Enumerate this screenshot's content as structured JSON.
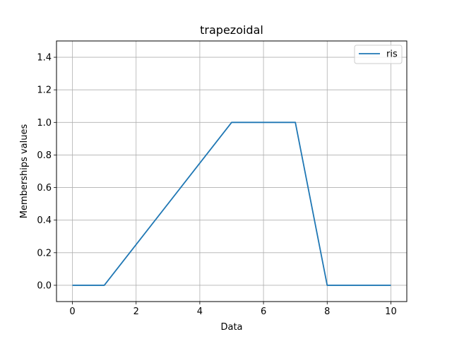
{
  "chart_data": {
    "type": "line",
    "title": "trapezoidal",
    "xlabel": "Data",
    "ylabel": "Memberships values",
    "xlim": [
      -0.5,
      10.5
    ],
    "ylim": [
      -0.1,
      1.5
    ],
    "xticks": [
      0,
      2,
      4,
      6,
      8,
      10
    ],
    "xtick_labels": [
      "0",
      "2",
      "4",
      "6",
      "8",
      "10"
    ],
    "yticks": [
      0.0,
      0.2,
      0.4,
      0.6,
      0.8,
      1.0,
      1.2,
      1.4
    ],
    "ytick_labels": [
      "0.0",
      "0.2",
      "0.4",
      "0.6",
      "0.8",
      "1.0",
      "1.2",
      "1.4"
    ],
    "grid": true,
    "legend_position": "top-right",
    "series": [
      {
        "name": "ris",
        "color": "#1f77b4",
        "x": [
          0,
          1,
          5,
          7,
          8,
          10
        ],
        "y": [
          0,
          0,
          1,
          1,
          0,
          0
        ]
      }
    ]
  }
}
